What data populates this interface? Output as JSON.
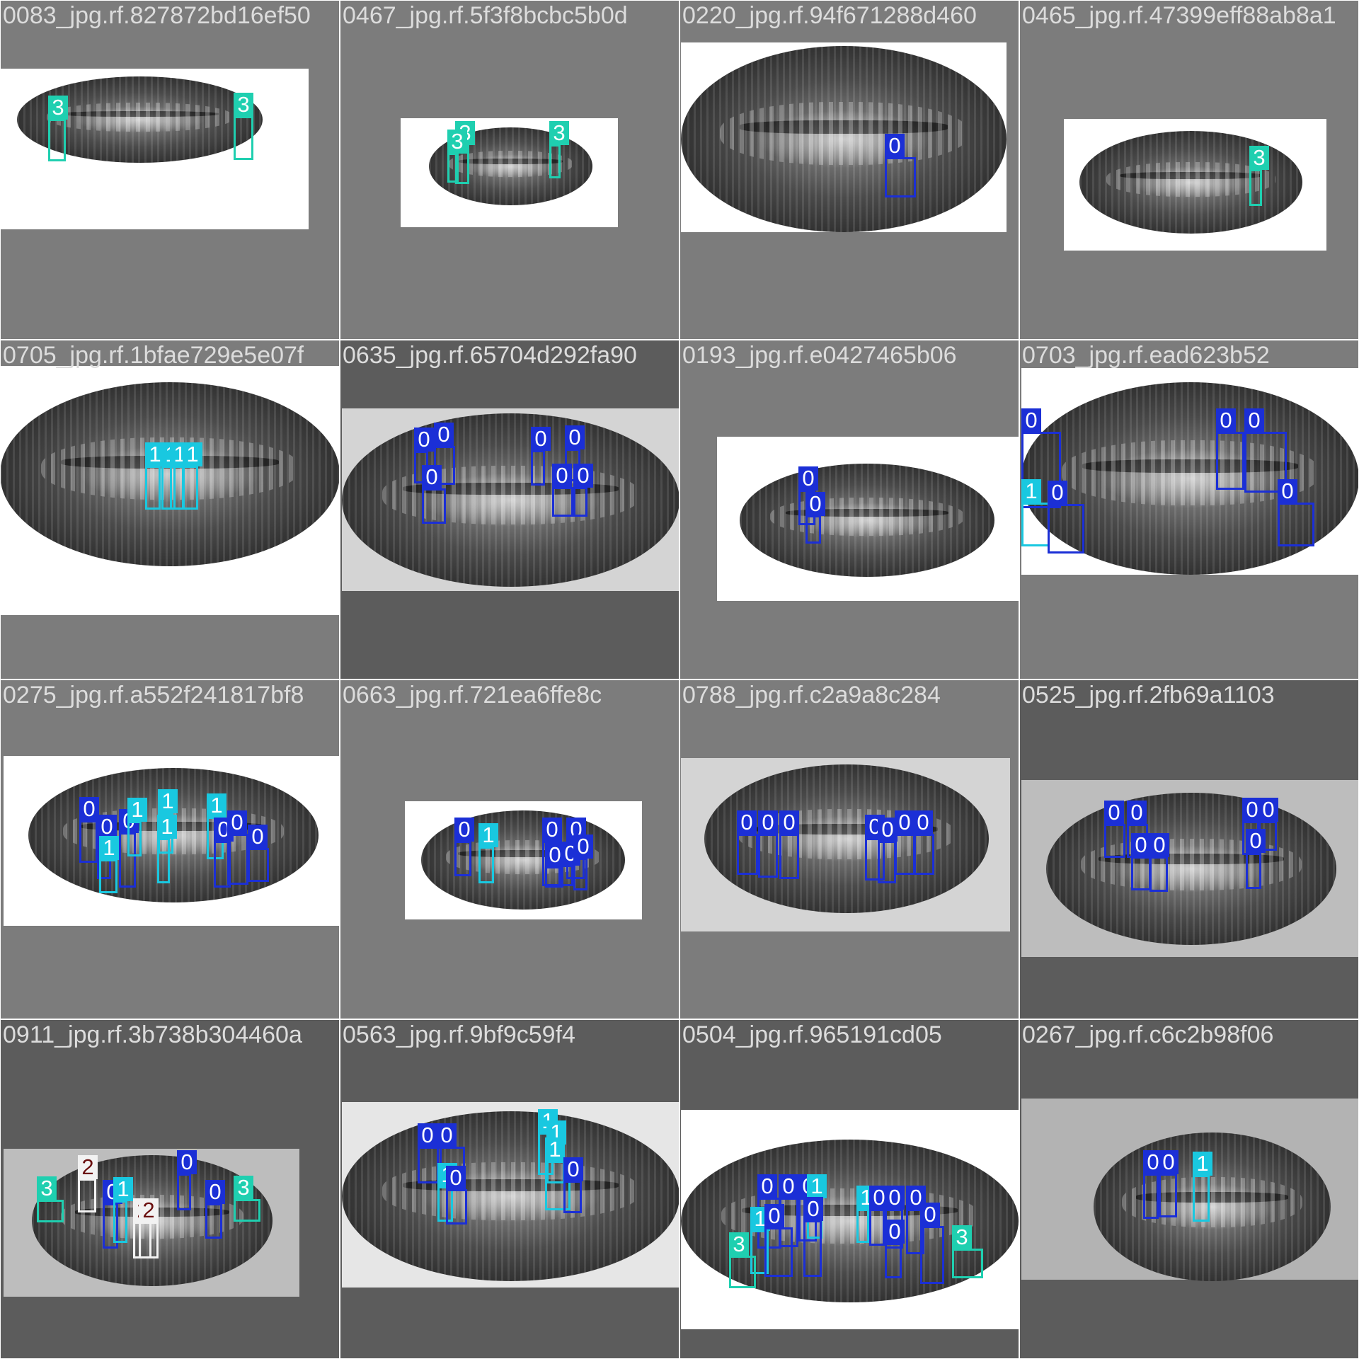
{
  "colors": {
    "0": "#1b2fd6",
    "1": "#19c8e0",
    "2": "#f2f2f2",
    "3": "#1fcfb0"
  },
  "label_text_colors": {
    "0": "#ffffff",
    "1": "#ffffff",
    "2": "#6b1010",
    "3": "#ffffff"
  },
  "tiles": [
    {
      "title": "0083_jpg.rf.827872bd16ef50",
      "bg": "#7c7c7c",
      "letterbox": "#ffffff",
      "boxes": [
        {
          "cls": "3",
          "label": "3"
        },
        {
          "cls": "3",
          "label": "3"
        }
      ]
    },
    {
      "title": "0467_jpg.rf.5f3f8bcbc5b0d",
      "bg": "#7c7c7c",
      "letterbox": "#ffffff",
      "boxes": [
        {
          "cls": "3",
          "label": "3"
        },
        {
          "cls": "3",
          "label": "3"
        },
        {
          "cls": "3",
          "label": "3"
        }
      ]
    },
    {
      "title": "0220_jpg.rf.94f671288d460",
      "bg": "#7c7c7c",
      "letterbox": "#ffffff",
      "boxes": [
        {
          "cls": "0",
          "label": "0"
        }
      ]
    },
    {
      "title": "0465_jpg.rf.47399eff88ab8a1",
      "bg": "#7c7c7c",
      "letterbox": "#ffffff",
      "boxes": [
        {
          "cls": "3",
          "label": "3"
        }
      ]
    },
    {
      "title": "0705_jpg.rf.1bfae729e5e07f",
      "bg": "#7c7c7c",
      "letterbox": "#ffffff",
      "boxes": [
        {
          "cls": "1",
          "label": "1"
        },
        {
          "cls": "1",
          "label": "1"
        },
        {
          "cls": "1",
          "label": "1"
        },
        {
          "cls": "1",
          "label": "1"
        }
      ]
    },
    {
      "title": "0635_jpg.rf.65704d292fa90",
      "bg": "#5c5c5c",
      "letterbox": "#d4d4d4",
      "boxes": [
        {
          "cls": "0",
          "label": "0"
        },
        {
          "cls": "0",
          "label": "0"
        },
        {
          "cls": "0",
          "label": "0"
        },
        {
          "cls": "0",
          "label": "0"
        },
        {
          "cls": "0",
          "label": "0"
        },
        {
          "cls": "0",
          "label": "0"
        },
        {
          "cls": "0",
          "label": "0"
        }
      ]
    },
    {
      "title": "0193_jpg.rf.e0427465b06",
      "bg": "#7c7c7c",
      "letterbox": "#ffffff",
      "boxes": [
        {
          "cls": "0",
          "label": "0"
        },
        {
          "cls": "0",
          "label": "0"
        }
      ]
    },
    {
      "title": "0703_jpg.rf.ead623b52",
      "bg": "#7c7c7c",
      "letterbox": "#ffffff",
      "boxes": [
        {
          "cls": "0",
          "label": "0"
        },
        {
          "cls": "0",
          "label": "0"
        },
        {
          "cls": "0",
          "label": "0"
        },
        {
          "cls": "1",
          "label": "1"
        },
        {
          "cls": "0",
          "label": "0"
        },
        {
          "cls": "0",
          "label": "0"
        }
      ]
    },
    {
      "title": "0275_jpg.rf.a552f241817bf8",
      "bg": "#7c7c7c",
      "letterbox": "#ffffff",
      "boxes": [
        {
          "cls": "0",
          "label": "0"
        },
        {
          "cls": "0",
          "label": "0"
        },
        {
          "cls": "0",
          "label": "0"
        },
        {
          "cls": "1",
          "label": "1"
        },
        {
          "cls": "1",
          "label": "1"
        },
        {
          "cls": "1",
          "label": "1"
        },
        {
          "cls": "1",
          "label": "1"
        },
        {
          "cls": "0",
          "label": "0"
        },
        {
          "cls": "0",
          "label": "0"
        },
        {
          "cls": "0",
          "label": "0"
        },
        {
          "cls": "1",
          "label": "1"
        }
      ]
    },
    {
      "title": "0663_jpg.rf.721ea6ffe8c",
      "bg": "#7c7c7c",
      "letterbox": "#ffffff",
      "boxes": [
        {
          "cls": "0",
          "label": "0"
        },
        {
          "cls": "1",
          "label": "1"
        },
        {
          "cls": "0",
          "label": "0"
        },
        {
          "cls": "0",
          "label": "0"
        },
        {
          "cls": "0",
          "label": "0"
        },
        {
          "cls": "0",
          "label": "0"
        },
        {
          "cls": "0",
          "label": "0"
        }
      ]
    },
    {
      "title": "0788_jpg.rf.c2a9a8c284",
      "bg": "#7c7c7c",
      "letterbox": "#d4d4d4",
      "boxes": [
        {
          "cls": "0",
          "label": "0"
        },
        {
          "cls": "0",
          "label": "0"
        },
        {
          "cls": "0",
          "label": "0"
        },
        {
          "cls": "0",
          "label": "0"
        },
        {
          "cls": "0",
          "label": "0"
        },
        {
          "cls": "0",
          "label": "0"
        },
        {
          "cls": "0",
          "label": "0"
        }
      ]
    },
    {
      "title": "0525_jpg.rf.2fb69a1103",
      "bg": "#5c5c5c",
      "letterbox": "#bdbdbd",
      "boxes": [
        {
          "cls": "0",
          "label": "0"
        },
        {
          "cls": "0",
          "label": "0"
        },
        {
          "cls": "0",
          "label": "0"
        },
        {
          "cls": "0",
          "label": "0"
        },
        {
          "cls": "0",
          "label": "0"
        },
        {
          "cls": "0",
          "label": "0"
        },
        {
          "cls": "0",
          "label": "0"
        }
      ]
    },
    {
      "title": "0911_jpg.rf.3b738b304460a",
      "bg": "#5c5c5c",
      "letterbox": "#bdbdbd",
      "boxes": [
        {
          "cls": "3",
          "label": "3"
        },
        {
          "cls": "2",
          "label": "2"
        },
        {
          "cls": "0",
          "label": "0"
        },
        {
          "cls": "1",
          "label": "1"
        },
        {
          "cls": "2",
          "label": "2"
        },
        {
          "cls": "2",
          "label": "2"
        },
        {
          "cls": "0",
          "label": "0"
        },
        {
          "cls": "0",
          "label": "0"
        },
        {
          "cls": "3",
          "label": "3"
        }
      ]
    },
    {
      "title": "0563_jpg.rf.9bf9c59f4",
      "bg": "#5c5c5c",
      "letterbox": "#e6e6e6",
      "boxes": [
        {
          "cls": "0",
          "label": "0"
        },
        {
          "cls": "0",
          "label": "0"
        },
        {
          "cls": "1",
          "label": "1"
        },
        {
          "cls": "0",
          "label": "0"
        },
        {
          "cls": "1",
          "label": "1"
        },
        {
          "cls": "1",
          "label": "1"
        },
        {
          "cls": "1",
          "label": "1"
        },
        {
          "cls": "0",
          "label": "0"
        }
      ]
    },
    {
      "title": "0504_jpg.rf.965191cd05",
      "bg": "#5c5c5c",
      "letterbox": "#ffffff",
      "boxes": [
        {
          "cls": "0",
          "label": "0"
        },
        {
          "cls": "0",
          "label": "0"
        },
        {
          "cls": "0",
          "label": "0"
        },
        {
          "cls": "1",
          "label": "1"
        },
        {
          "cls": "1",
          "label": "1"
        },
        {
          "cls": "3",
          "label": "3"
        },
        {
          "cls": "0",
          "label": "0"
        },
        {
          "cls": "0",
          "label": "0"
        },
        {
          "cls": "1",
          "label": "1"
        },
        {
          "cls": "0",
          "label": "0"
        },
        {
          "cls": "0",
          "label": "0"
        },
        {
          "cls": "0",
          "label": "0"
        },
        {
          "cls": "0",
          "label": "0"
        },
        {
          "cls": "0",
          "label": "0"
        },
        {
          "cls": "3",
          "label": "3"
        }
      ]
    },
    {
      "title": "0267_jpg.rf.c6c2b98f06",
      "bg": "#5c5c5c",
      "letterbox": "#b3b3b3",
      "boxes": [
        {
          "cls": "0",
          "label": "0"
        },
        {
          "cls": "0",
          "label": "0"
        },
        {
          "cls": "1",
          "label": "1"
        }
      ]
    }
  ]
}
